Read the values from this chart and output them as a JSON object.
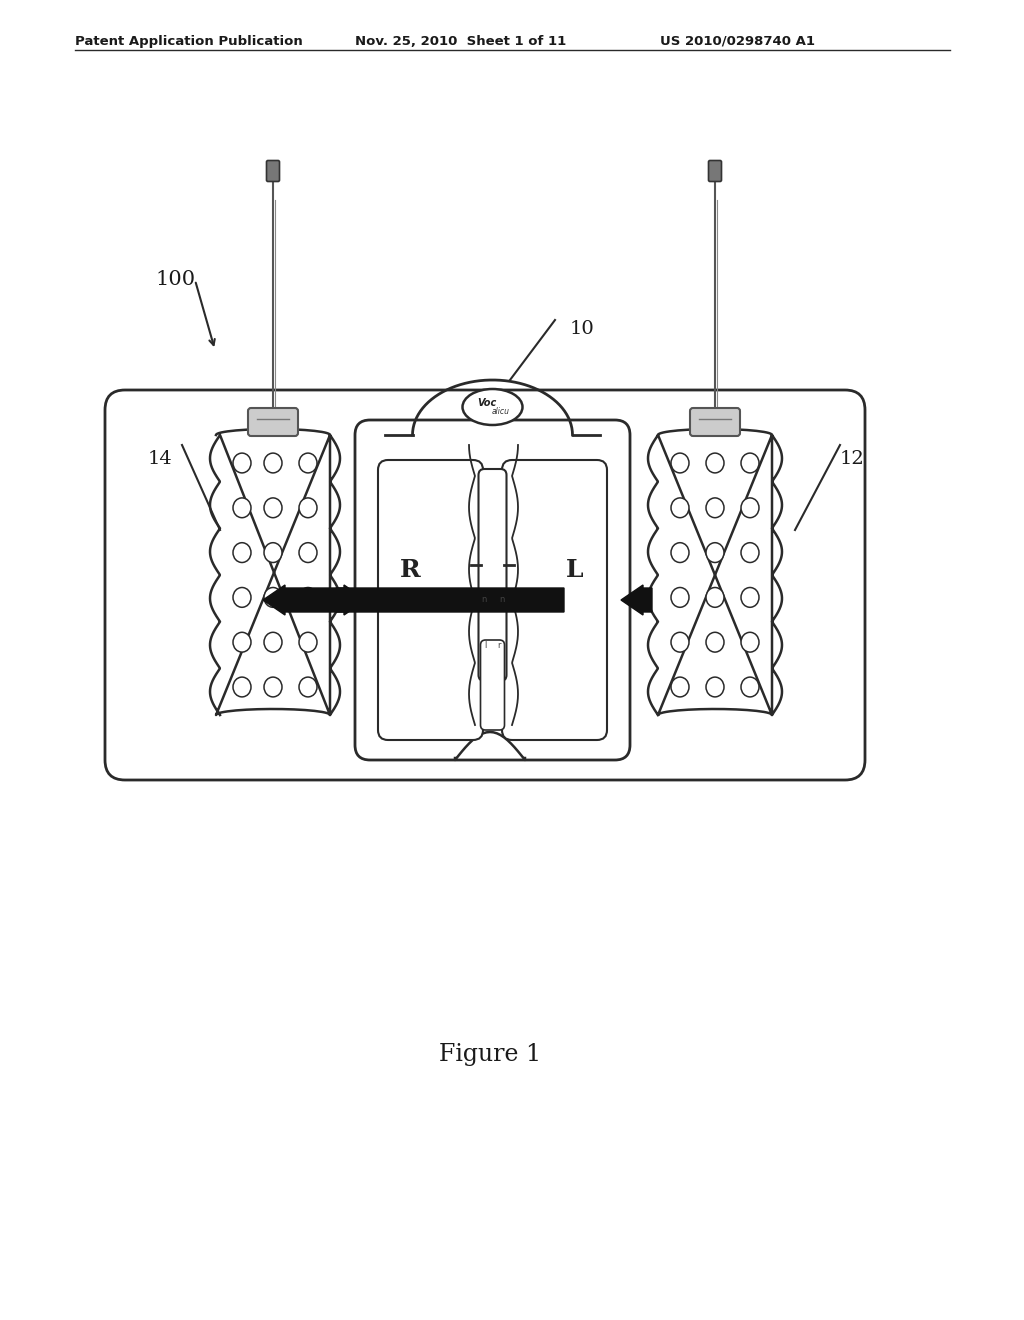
{
  "bg_color": "#ffffff",
  "header_left": "Patent Application Publication",
  "header_mid": "Nov. 25, 2010  Sheet 1 of 11",
  "header_right": "US 2010/0298740 A1",
  "label_100": "100",
  "label_10": "10",
  "label_14": "14",
  "label_12": "12",
  "figure_label": "Figure 1",
  "lc": "#2a2a2a",
  "lc_light": "#555555"
}
